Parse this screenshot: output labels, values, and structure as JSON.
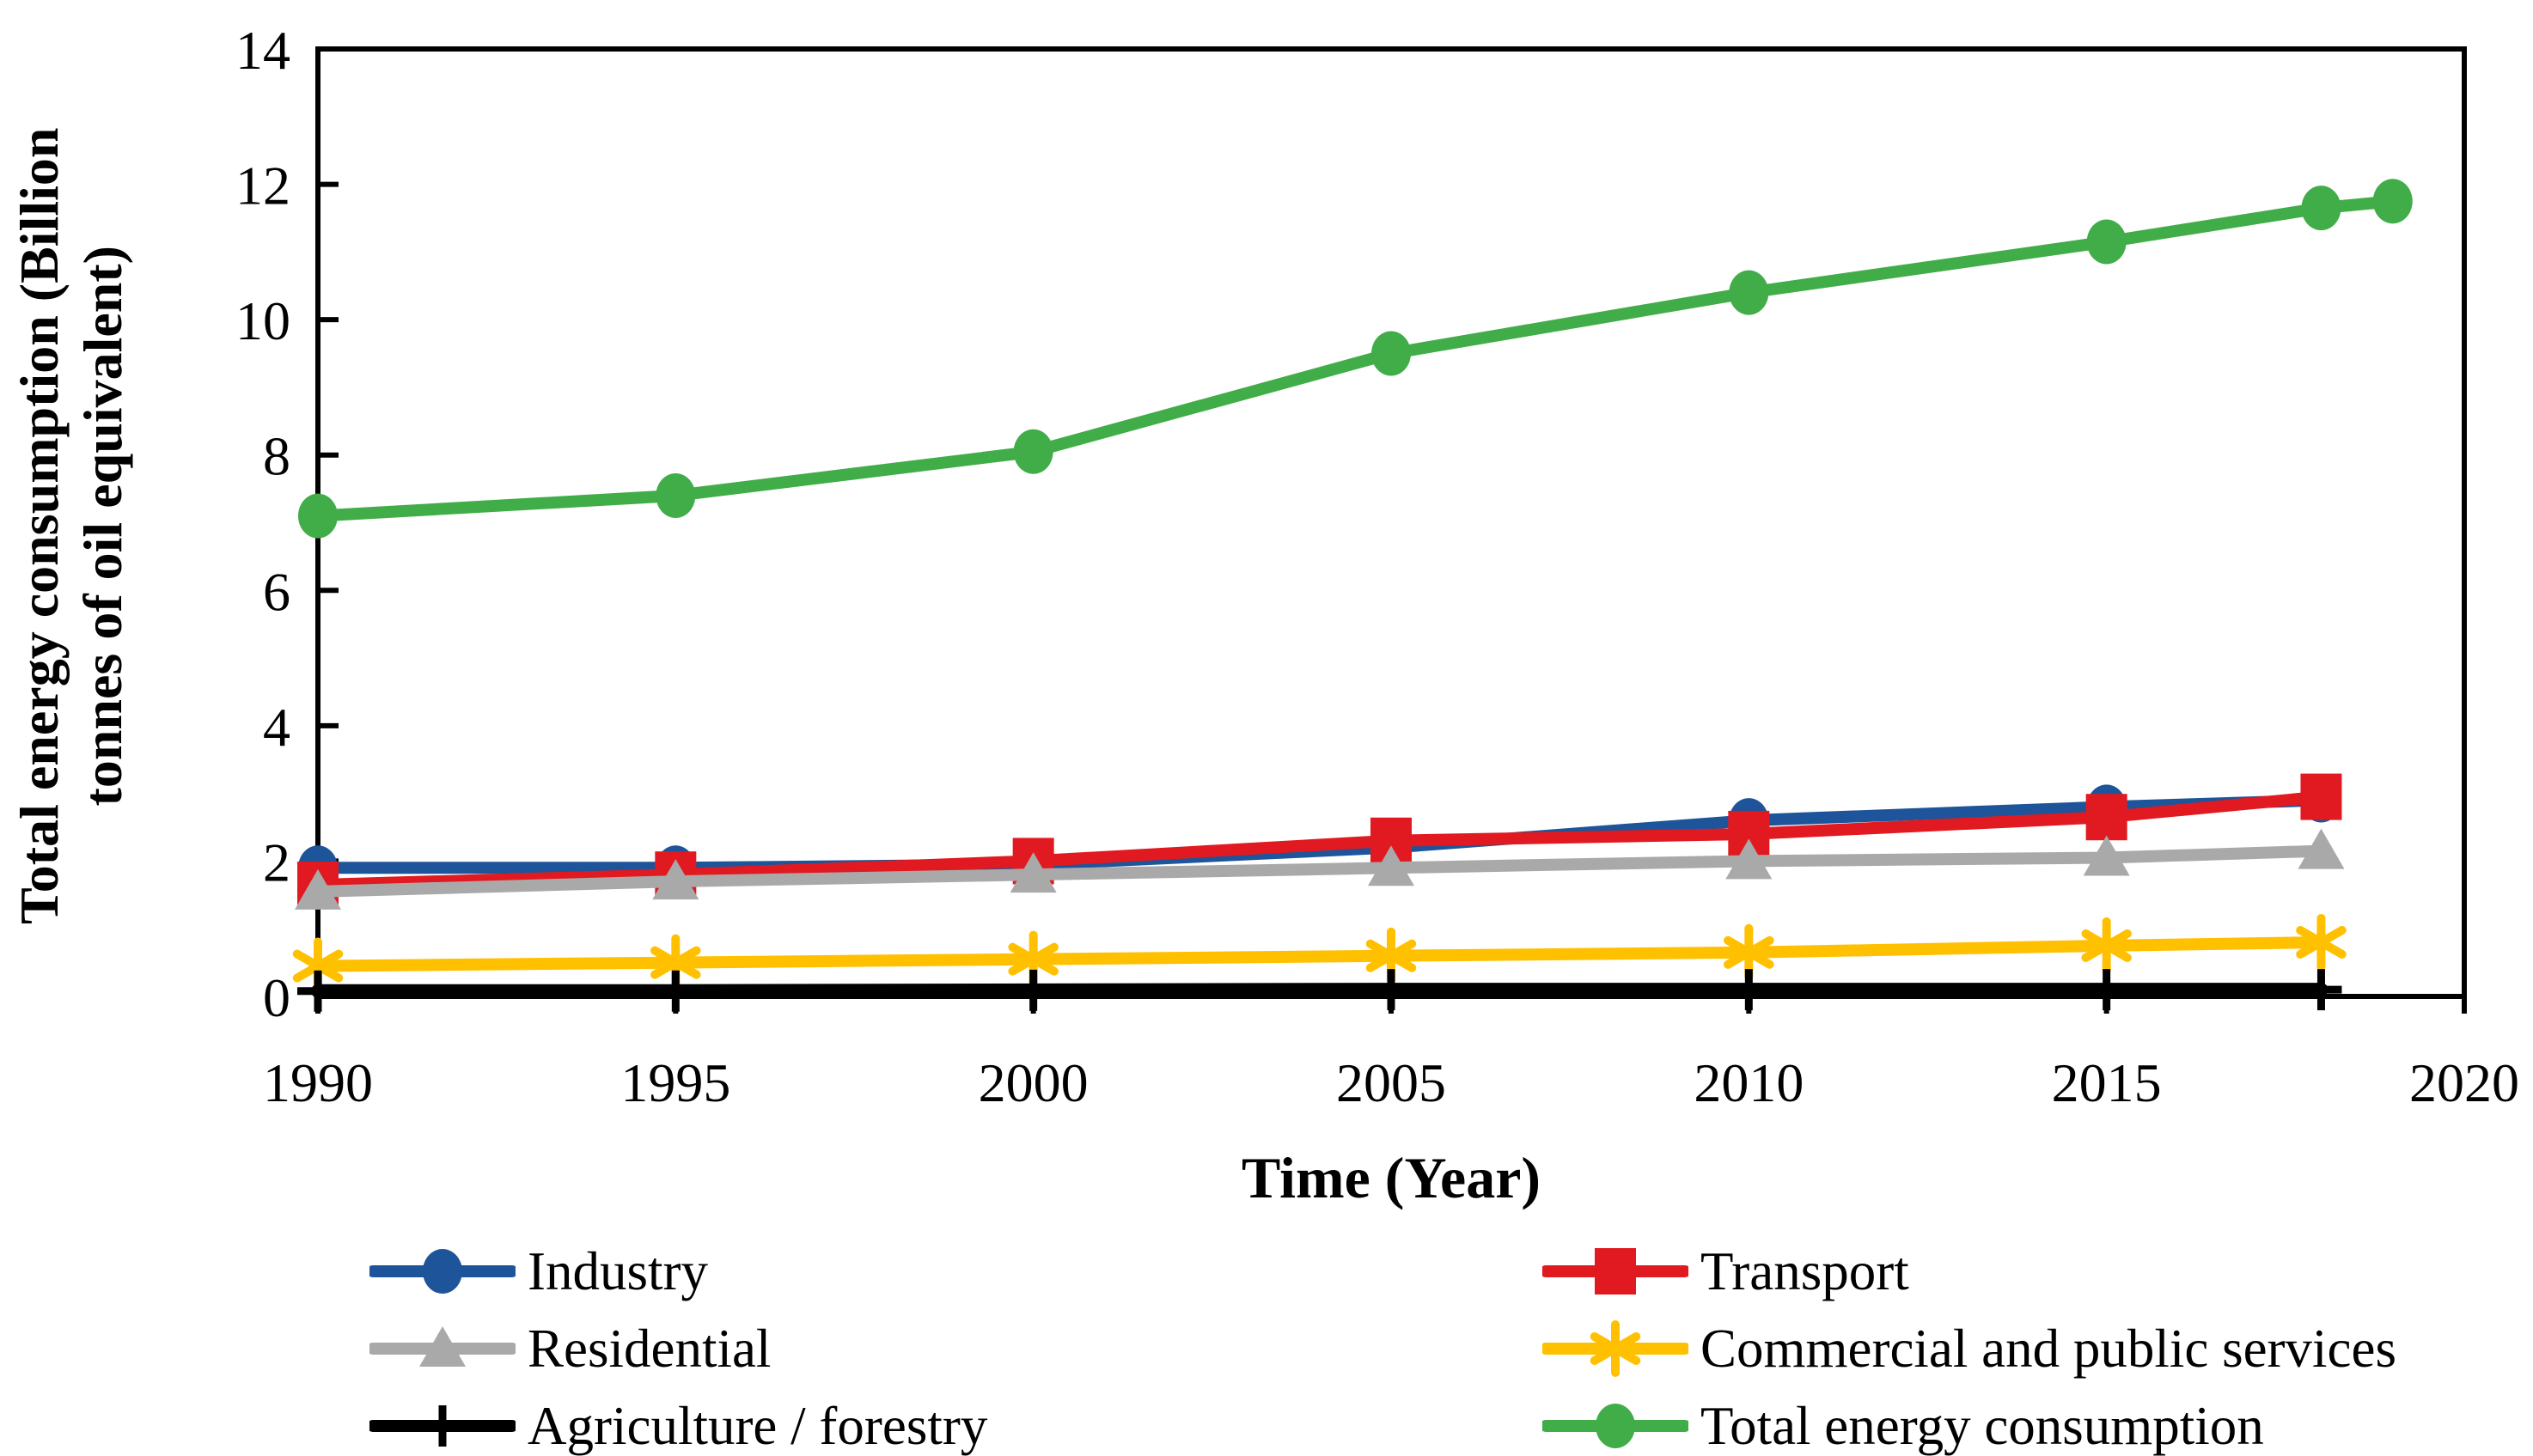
{
  "figure": {
    "background": "#ffffff",
    "text_color": "#000000"
  },
  "chart_data": {
    "type": "line",
    "title": "",
    "xlabel": "Time (Year)",
    "ylabel": "Total energy consumption (Billion tonnes of oil equivalent)",
    "ylabel_line1": "Total energy consumption (Billion",
    "ylabel_line2": "tonnes of oil equivalent)",
    "units": "Billion tonnes of oil equivalent",
    "xlim": [
      1990,
      2020
    ],
    "ylim": [
      0,
      14
    ],
    "x_ticks": [
      1990,
      1995,
      2000,
      2005,
      2010,
      2015,
      2020
    ],
    "y_ticks": [
      0,
      2,
      4,
      6,
      8,
      10,
      12,
      14
    ],
    "grid": false,
    "legend_position": "bottom, two columns",
    "series": [
      {
        "id": "industry",
        "name": "Industry",
        "color": "#1E5499",
        "marker": "circle",
        "x": [
          1990,
          1995,
          2000,
          2005,
          2010,
          2015,
          2018
        ],
        "y": [
          1.9,
          1.9,
          1.95,
          2.2,
          2.6,
          2.8,
          2.9
        ]
      },
      {
        "id": "transport",
        "name": "Transport",
        "color": "#E01A20",
        "marker": "square",
        "x": [
          1990,
          1995,
          2000,
          2005,
          2010,
          2015,
          2018
        ],
        "y": [
          1.65,
          1.8,
          2.0,
          2.3,
          2.4,
          2.65,
          2.95
        ]
      },
      {
        "id": "residential",
        "name": "Residential",
        "color": "#A9A9A9",
        "marker": "triangle",
        "x": [
          1990,
          1995,
          2000,
          2005,
          2010,
          2015,
          2018
        ],
        "y": [
          1.55,
          1.7,
          1.8,
          1.9,
          2.0,
          2.05,
          2.15
        ]
      },
      {
        "id": "commercial",
        "name": "Commercial and public services",
        "color": "#FFC000",
        "marker": "asterisk",
        "x": [
          1990,
          1995,
          2000,
          2005,
          2010,
          2015,
          2018
        ],
        "y": [
          0.45,
          0.5,
          0.55,
          0.6,
          0.65,
          0.75,
          0.8
        ]
      },
      {
        "id": "agriculture",
        "name": "Agriculture / forestry",
        "color": "#000000",
        "marker": "plus",
        "x": [
          1990,
          1995,
          2000,
          2005,
          2010,
          2015,
          2018
        ],
        "y": [
          0.08,
          0.08,
          0.09,
          0.1,
          0.1,
          0.1,
          0.1
        ]
      },
      {
        "id": "total",
        "name": "Total energy consumption",
        "color": "#41AD49",
        "marker": "circle",
        "x": [
          1990,
          1995,
          2000,
          2005,
          2010,
          2015,
          2018,
          2019
        ],
        "y": [
          7.1,
          7.4,
          8.05,
          9.5,
          10.4,
          11.15,
          11.65,
          11.75
        ]
      }
    ]
  }
}
